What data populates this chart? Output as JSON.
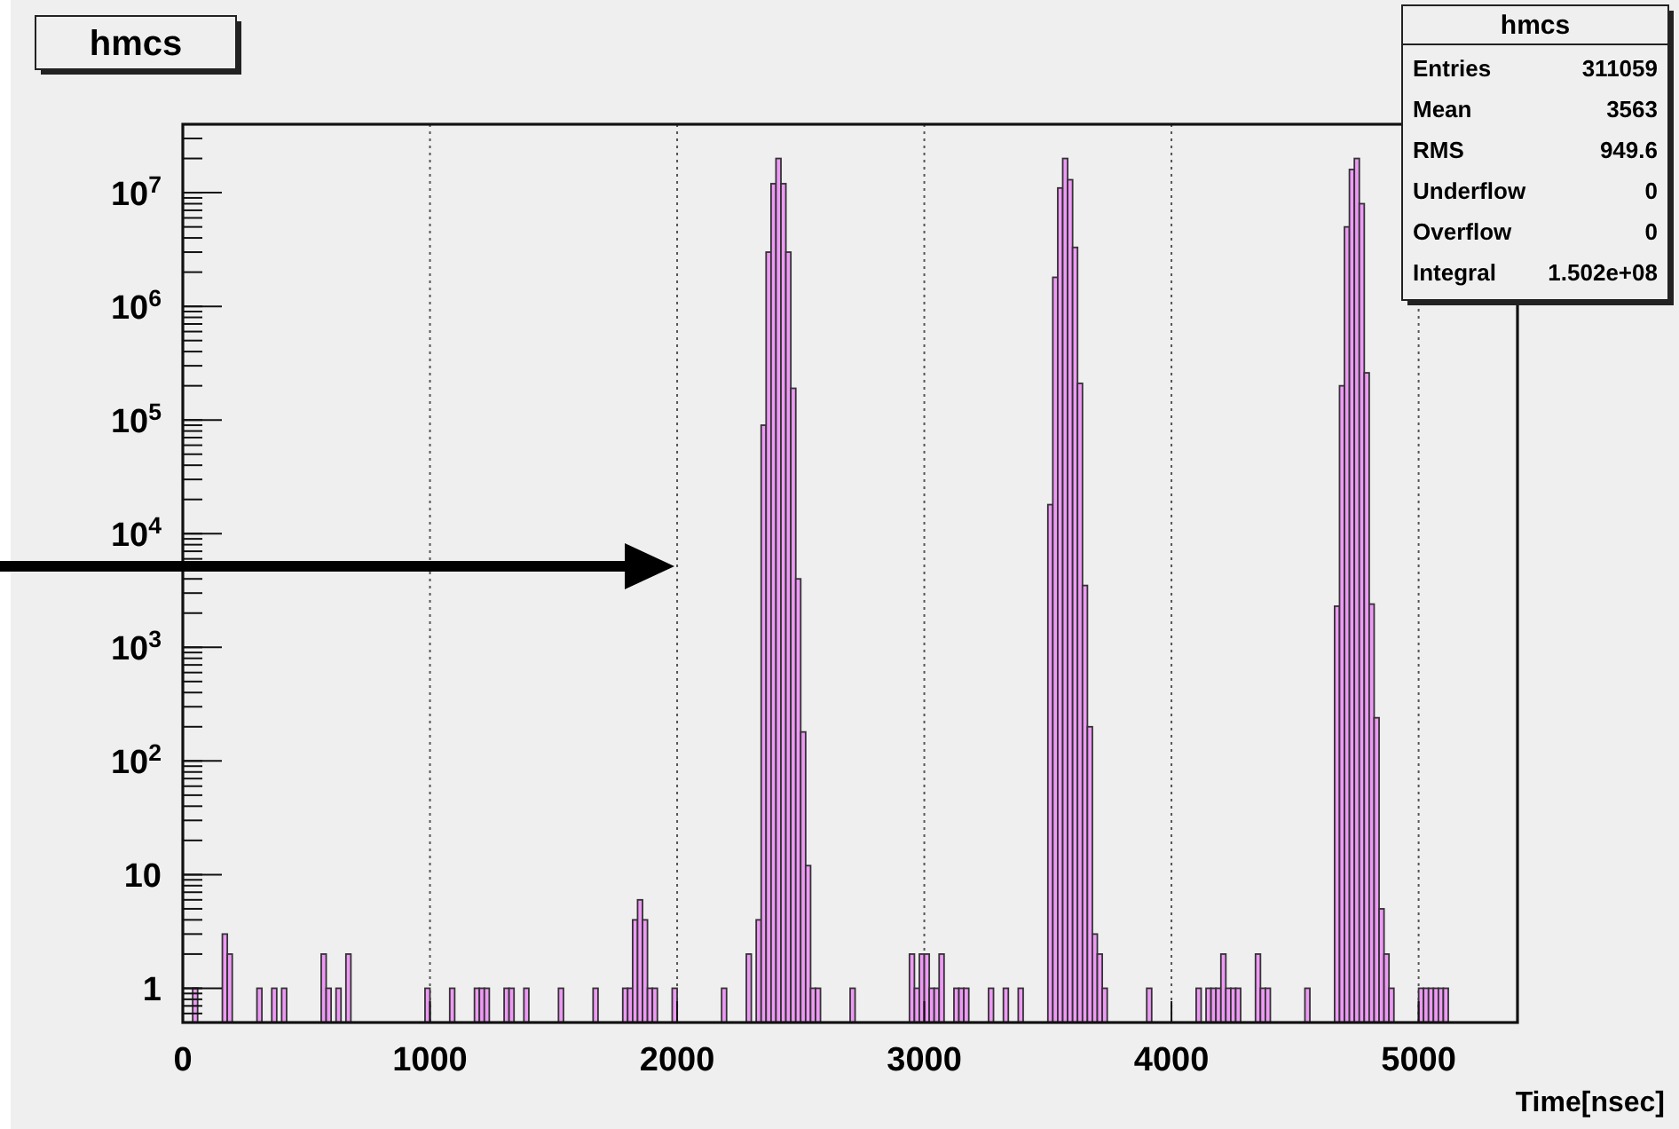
{
  "chart_data": {
    "type": "histogram",
    "title": "hmcs",
    "xlabel": "Time[nsec]",
    "color": "#ee99f5",
    "bins": [
      40,
      60,
      160,
      180,
      200,
      300,
      320,
      360,
      380,
      400,
      420,
      560,
      580,
      600,
      620,
      640,
      660,
      680,
      980,
      1000,
      1080,
      1100,
      1180,
      1200,
      1220,
      1240,
      1300,
      1320,
      1340,
      1380,
      1400,
      1520,
      1540,
      1660,
      1680,
      1780,
      1800,
      1820,
      1840,
      1860,
      1880,
      1900,
      1920,
      1980,
      2000,
      2180,
      2200,
      2280,
      2300,
      2320,
      2340,
      2360,
      2380,
      2400,
      2420,
      2440,
      2460,
      2480,
      2500,
      2520,
      2540,
      2560,
      2580,
      2700,
      2720,
      2940,
      2960,
      2980,
      3000,
      3020,
      3040,
      3060,
      3080,
      3120,
      3140,
      3160,
      3180,
      3260,
      3280,
      3320,
      3340,
      3380,
      3400,
      3500,
      3520,
      3540,
      3560,
      3580,
      3600,
      3620,
      3640,
      3660,
      3680,
      3700,
      3720,
      3740,
      3900,
      3920,
      4100,
      4120,
      4140,
      4160,
      4180,
      4200,
      4220,
      4240,
      4260,
      4280,
      4340,
      4360,
      4380,
      4400,
      4540,
      4560,
      4660,
      4680,
      4700,
      4720,
      4740,
      4760,
      4780,
      4800,
      4820,
      4840,
      4860,
      4880,
      4900,
      5000,
      5020,
      5040,
      5060,
      5080,
      5100,
      5120
    ],
    "values": [
      1,
      null,
      3,
      2,
      null,
      1,
      null,
      1,
      null,
      1,
      null,
      2,
      1,
      null,
      1,
      null,
      2,
      null,
      1,
      null,
      1,
      null,
      1,
      1,
      1,
      null,
      1,
      1,
      null,
      1,
      null,
      1,
      null,
      1,
      null,
      1,
      1,
      4,
      6,
      4,
      1,
      1,
      null,
      1,
      null,
      1,
      null,
      2,
      null,
      4,
      90000,
      3000000,
      12000000,
      20000000,
      12000000,
      3000000,
      190000,
      4000,
      180,
      12,
      1,
      1,
      null,
      1,
      null,
      2,
      1,
      2,
      2,
      1,
      1,
      2,
      null,
      1,
      1,
      1,
      null,
      1,
      null,
      1,
      null,
      1,
      null,
      18000,
      1800000,
      11000000,
      20000000,
      13000000,
      3300000,
      210000,
      3500,
      200,
      3,
      2,
      1,
      null,
      1,
      null,
      1,
      null,
      1,
      1,
      1,
      2,
      1,
      1,
      1,
      null,
      2,
      1,
      1,
      null,
      1,
      null,
      2300,
      200000,
      5000000,
      16000000,
      20000000,
      8000000,
      260000,
      2400,
      240,
      5,
      2,
      1,
      null,
      1,
      1,
      1,
      1,
      1,
      1
    ],
    "xlim": [
      0,
      5400
    ],
    "xticks": [
      0,
      1000,
      2000,
      3000,
      4000,
      5000
    ],
    "ylim": [
      0.5,
      40000000
    ],
    "yticks": [
      1,
      10,
      {
        "value": 100,
        "label": "10$^{2}$"
      },
      {
        "value": 1000,
        "label": "10$^{3}$"
      },
      {
        "value": 10000,
        "label": "10$^{4}$"
      },
      {
        "value": 100000,
        "label": "10$^{5}$"
      },
      {
        "value": 1000000,
        "label": "10$^{6}$"
      },
      {
        "value": 10000000,
        "label": "10$^{7}$"
      }
    ],
    "log": true,
    "grid": "x",
    "annotations": [
      "hmcs",
      "Entries 311059",
      "Mean 3563",
      "RMS 949.6",
      "Underflow 0",
      "Overflow 0",
      "Integral 1.502e+08"
    ]
  }
}
